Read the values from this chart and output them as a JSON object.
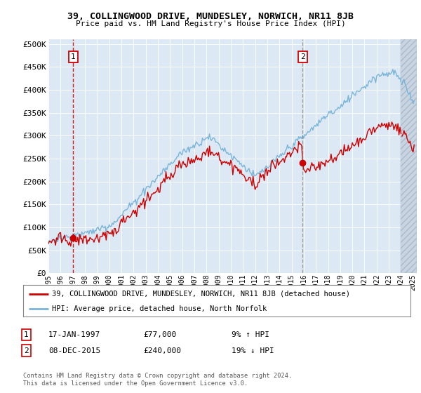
{
  "title": "39, COLLINGWOOD DRIVE, MUNDESLEY, NORWICH, NR11 8JB",
  "subtitle": "Price paid vs. HM Land Registry's House Price Index (HPI)",
  "ylabel_ticks": [
    "£0",
    "£50K",
    "£100K",
    "£150K",
    "£200K",
    "£250K",
    "£300K",
    "£350K",
    "£400K",
    "£450K",
    "£500K"
  ],
  "ytick_values": [
    0,
    50000,
    100000,
    150000,
    200000,
    250000,
    300000,
    350000,
    400000,
    450000,
    500000
  ],
  "ylim": [
    0,
    510000
  ],
  "xlim_start": 1995.0,
  "xlim_end": 2025.3,
  "sale1_date": 1997.04,
  "sale1_price": 77000,
  "sale1_label": "1",
  "sale2_date": 2015.92,
  "sale2_price": 240000,
  "sale2_label": "2",
  "legend_line1": "39, COLLINGWOOD DRIVE, MUNDESLEY, NORWICH, NR11 8JB (detached house)",
  "legend_line2": "HPI: Average price, detached house, North Norfolk",
  "footnote1_label": "1",
  "footnote1_date": "17-JAN-1997",
  "footnote1_price": "£77,000",
  "footnote1_hpi": "9% ↑ HPI",
  "footnote2_label": "2",
  "footnote2_date": "08-DEC-2015",
  "footnote2_price": "£240,000",
  "footnote2_hpi": "19% ↓ HPI",
  "copyright_text": "Contains HM Land Registry data © Crown copyright and database right 2024.\nThis data is licensed under the Open Government Licence v3.0.",
  "hpi_color": "#7ab4d8",
  "sale_color": "#cc0000",
  "bg_color": "#dce9f5",
  "hatch_start": 2024.0
}
